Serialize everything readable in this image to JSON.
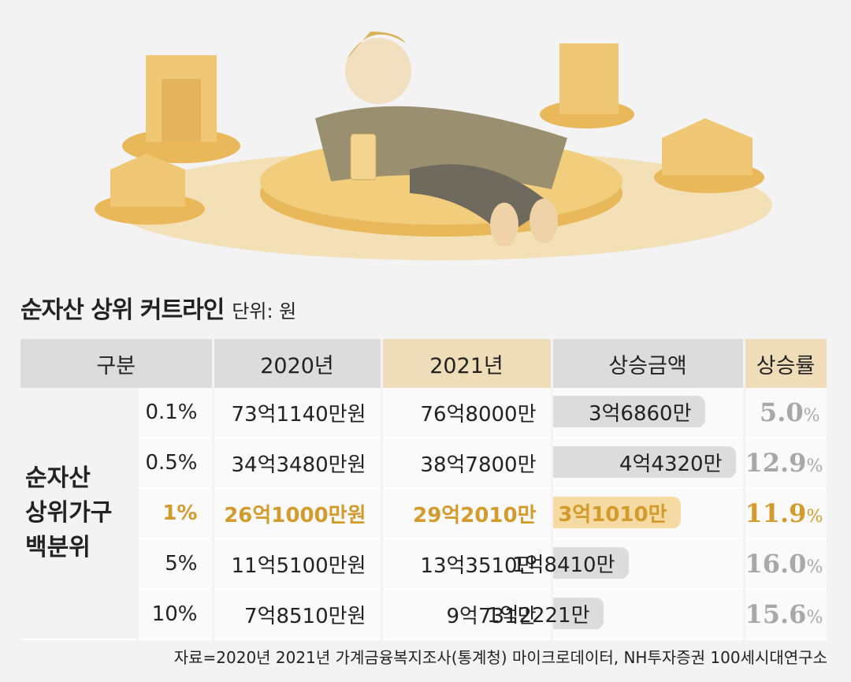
{
  "title": "순자산 상위 커트라인",
  "unit": "단위: 원",
  "headers": [
    "구분",
    "2020년",
    "2021년",
    "상승금액",
    "상승률"
  ],
  "group_label": [
    "순자산",
    "상위가구",
    "백분위"
  ],
  "source": "자료=2020년 2021년 가계금융복지조사(통계청) 마이크로데이터, NH투자증권 100세시대연구소",
  "chart_data": {
    "type": "table",
    "title": "순자산 상위 커트라인",
    "unit": "원",
    "columns": [
      "구분",
      "2020년",
      "2021년",
      "상승금액",
      "상승률"
    ],
    "rows": [
      {
        "percentile": "0.1%",
        "y2020": "73억1140만원",
        "y2021": "76억8000만",
        "increase": "3억6860만",
        "increase_value": 36860,
        "rate_num": "5.0",
        "rate_unit": "%",
        "highlight": false
      },
      {
        "percentile": "0.5%",
        "y2020": "34억3480만원",
        "y2021": "38억7800만",
        "increase": "4억4320만",
        "increase_value": 44320,
        "rate_num": "12.9",
        "rate_unit": "%",
        "highlight": false
      },
      {
        "percentile": "1%",
        "y2020": "26억1000만원",
        "y2021": "29억2010만",
        "increase": "3억1010만",
        "increase_value": 31010,
        "rate_num": "11.9",
        "rate_unit": "%",
        "highlight": true
      },
      {
        "percentile": "5%",
        "y2020": "11억5100만원",
        "y2021": "13억3510만",
        "increase": "1억8410만",
        "increase_value": 18410,
        "rate_num": "16.0",
        "rate_unit": "%",
        "highlight": false
      },
      {
        "percentile": "10%",
        "y2020": "7억8510만원",
        "y2021": "9억731만",
        "increase": "1억2221만",
        "increase_value": 12221,
        "rate_num": "15.6",
        "rate_unit": "%",
        "highlight": false
      }
    ]
  },
  "colors": {
    "accent": "#d39a2c",
    "bar": "#dcdcdc",
    "bar_highlight": "#f5dba3",
    "header_gold": "#efdcb8",
    "header_gray": "#dcdcdc"
  }
}
